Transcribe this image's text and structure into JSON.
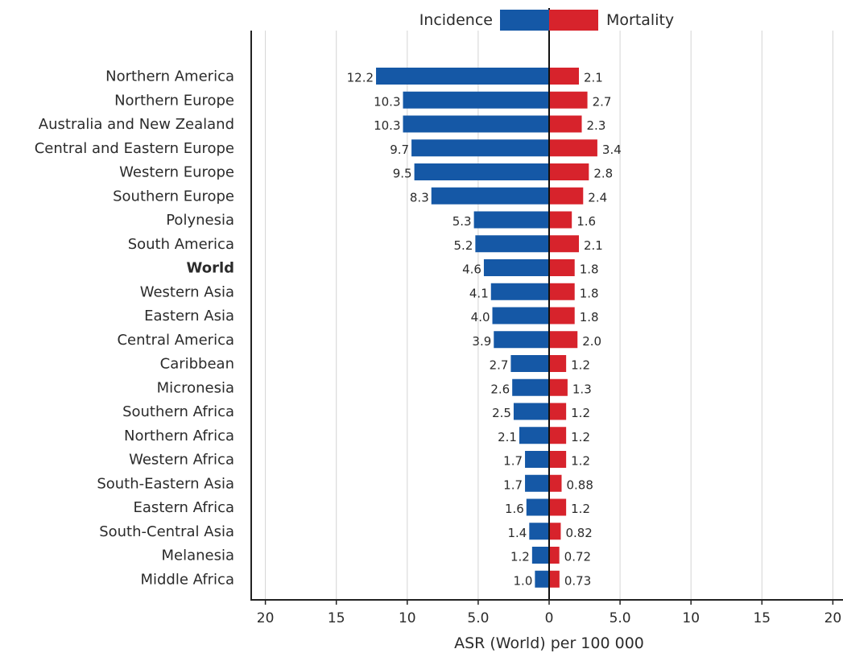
{
  "chart_data": {
    "type": "bar",
    "orientation": "horizontal-diverging",
    "xlabel": "ASR (World) per 100 000",
    "xlim": [
      -20,
      20
    ],
    "x_ticks": [
      "20",
      "15",
      "10",
      "5.0",
      "0",
      "5.0",
      "10",
      "15",
      "20"
    ],
    "grid": "vertical",
    "legend_position": "top-center",
    "categories": [
      "Northern America",
      "Northern Europe",
      "Australia and New Zealand",
      "Central and Eastern Europe",
      "Western Europe",
      "Southern Europe",
      "Polynesia",
      "South America",
      "World",
      "Western Asia",
      "Eastern Asia",
      "Central America",
      "Caribbean",
      "Micronesia",
      "Southern Africa",
      "Northern Africa",
      "Western Africa",
      "South-Eastern Asia",
      "Eastern Africa",
      "South-Central Asia",
      "Melanesia",
      "Middle Africa"
    ],
    "highlighted_category": "World",
    "series": [
      {
        "name": "Incidence",
        "color": "#1558a6",
        "side": "left",
        "values": [
          12.2,
          10.3,
          10.3,
          9.7,
          9.5,
          8.3,
          5.3,
          5.2,
          4.6,
          4.1,
          4.0,
          3.9,
          2.7,
          2.6,
          2.5,
          2.1,
          1.7,
          1.7,
          1.6,
          1.4,
          1.2,
          1.0
        ],
        "labels": [
          "12.2",
          "10.3",
          "10.3",
          "9.7",
          "9.5",
          "8.3",
          "5.3",
          "5.2",
          "4.6",
          "4.1",
          "4.0",
          "3.9",
          "2.7",
          "2.6",
          "2.5",
          "2.1",
          "1.7",
          "1.7",
          "1.6",
          "1.4",
          "1.2",
          "1.0"
        ]
      },
      {
        "name": "Mortality",
        "color": "#d7232c",
        "side": "right",
        "values": [
          2.1,
          2.7,
          2.3,
          3.4,
          2.8,
          2.4,
          1.6,
          2.1,
          1.8,
          1.8,
          1.8,
          2.0,
          1.2,
          1.3,
          1.2,
          1.2,
          1.2,
          0.88,
          1.2,
          0.82,
          0.72,
          0.73
        ],
        "labels": [
          "2.1",
          "2.7",
          "2.3",
          "3.4",
          "2.8",
          "2.4",
          "1.6",
          "2.1",
          "1.8",
          "1.8",
          "1.8",
          "2.0",
          "1.2",
          "1.3",
          "1.2",
          "1.2",
          "1.2",
          "0.88",
          "1.2",
          "0.82",
          "0.72",
          "0.73"
        ]
      }
    ]
  }
}
